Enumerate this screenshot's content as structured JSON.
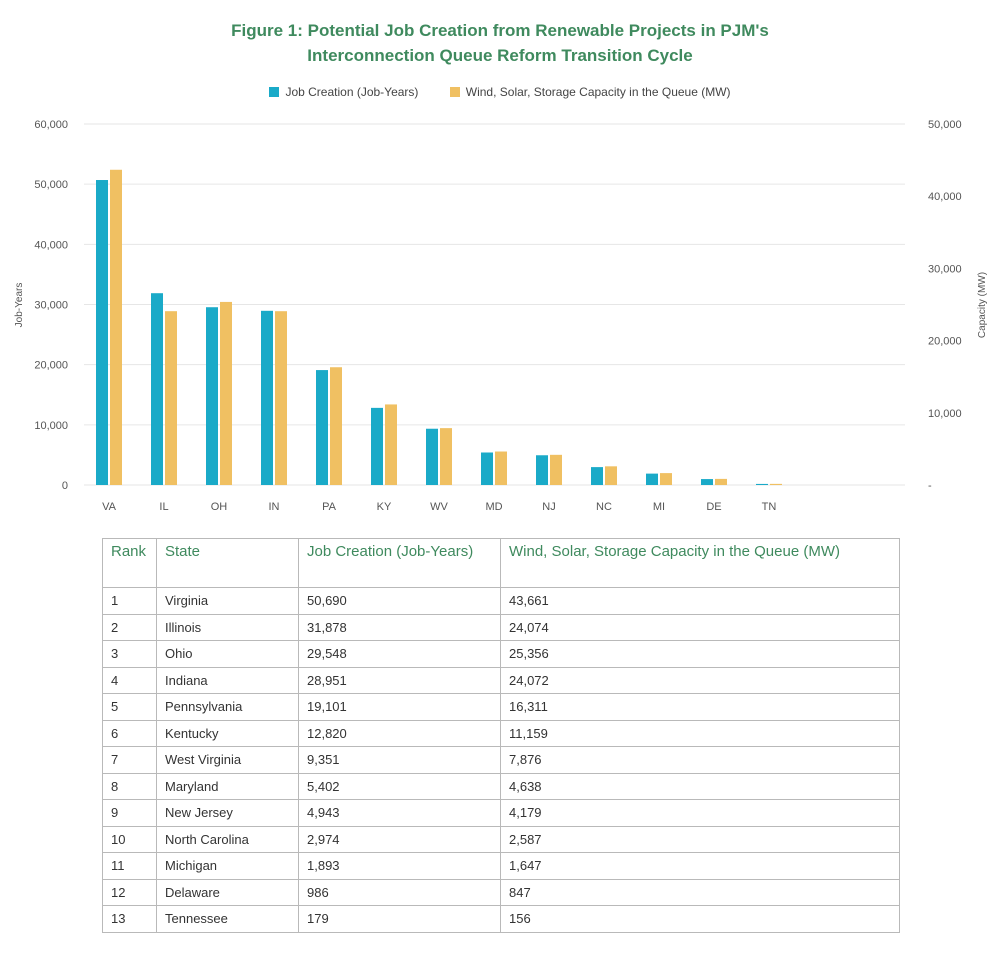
{
  "title_line1": "Figure 1: Potential Job Creation from Renewable Projects in PJM's",
  "title_line2": "Interconnection Queue Reform Transition Cycle",
  "colors": {
    "jobs": "#1aaac8",
    "capacity": "#f0c062",
    "grid": "#e6e6e6",
    "title": "#3f8a5e"
  },
  "chart_data": {
    "type": "bar",
    "categories": [
      "VA",
      "IL",
      "OH",
      "IN",
      "PA",
      "KY",
      "WV",
      "MD",
      "NJ",
      "NC",
      "MI",
      "DE",
      "TN"
    ],
    "series": [
      {
        "name": "Job Creation (Job-Years)",
        "axis": "left",
        "values": [
          50690,
          31878,
          29548,
          28951,
          19101,
          12820,
          9351,
          5402,
          4943,
          2974,
          1893,
          986,
          179
        ]
      },
      {
        "name": "Wind, Solar, Storage Capacity in the Queue (MW)",
        "axis": "right",
        "values": [
          43661,
          24074,
          25356,
          24072,
          16311,
          11159,
          7876,
          4638,
          4179,
          2587,
          1647,
          847,
          156
        ]
      }
    ],
    "ylabel": "Job-Years",
    "y2label": "Capacity (MW)",
    "ylim": [
      0,
      60000
    ],
    "y2lim": [
      0,
      50000
    ],
    "yticks": [
      "0",
      "10,000",
      "20,000",
      "30,000",
      "40,000",
      "50,000",
      "60,000"
    ],
    "y2ticks": [
      "-",
      "10,000",
      "20,000",
      "30,000",
      "40,000",
      "50,000"
    ],
    "grid": true,
    "legend": "top"
  },
  "table": {
    "headers": [
      "Rank",
      "State",
      "Job Creation (Job-Years)",
      "Wind, Solar, Storage Capacity in the Queue (MW)"
    ],
    "rows": [
      [
        "1",
        "Virginia",
        "50,690",
        "43,661"
      ],
      [
        "2",
        "Illinois",
        "31,878",
        "24,074"
      ],
      [
        "3",
        "Ohio",
        "29,548",
        "25,356"
      ],
      [
        "4",
        "Indiana",
        "28,951",
        "24,072"
      ],
      [
        "5",
        "Pennsylvania",
        "19,101",
        "16,311"
      ],
      [
        "6",
        "Kentucky",
        "12,820",
        "11,159"
      ],
      [
        "7",
        "West Virginia",
        "9,351",
        "7,876"
      ],
      [
        "8",
        "Maryland",
        "5,402",
        "4,638"
      ],
      [
        "9",
        "New Jersey",
        "4,943",
        "4,179"
      ],
      [
        "10",
        "North Carolina",
        "2,974",
        "2,587"
      ],
      [
        "11",
        "Michigan",
        "1,893",
        "1,647"
      ],
      [
        "12",
        "Delaware",
        "986",
        "847"
      ],
      [
        "13",
        "Tennessee",
        "179",
        "156"
      ]
    ]
  }
}
